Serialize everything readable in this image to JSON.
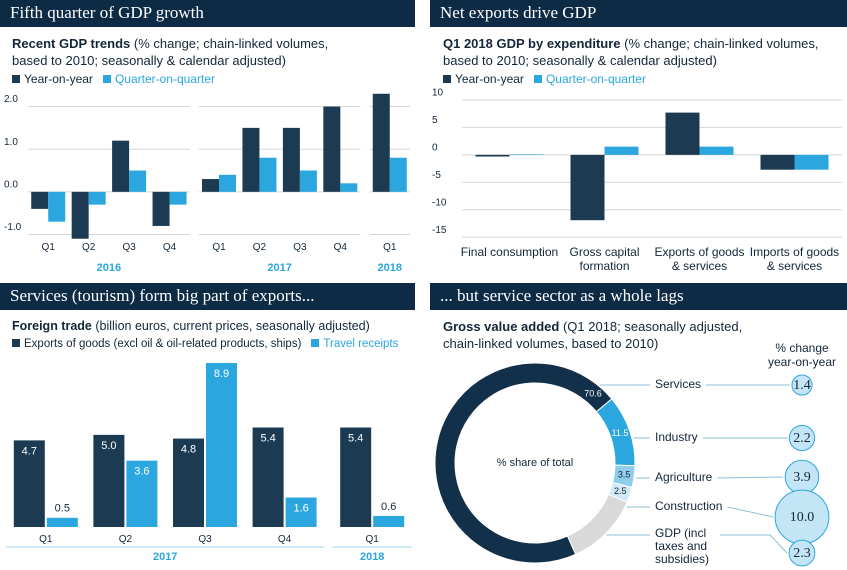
{
  "chart_data": [
    {
      "type": "grouped_bar",
      "title": "Fifth quarter of GDP growth",
      "subtitle": "Recent GDP trends",
      "note": "(% change; chain-linked volumes, based to 2010; seasonally & calendar adjusted)",
      "groups": [
        {
          "name": "2016",
          "categories": [
            "Q1",
            "Q2",
            "Q3",
            "Q4"
          ]
        },
        {
          "name": "2017",
          "categories": [
            "Q1",
            "Q2",
            "Q3",
            "Q4"
          ]
        },
        {
          "name": "2018",
          "categories": [
            "Q1"
          ]
        }
      ],
      "series": [
        {
          "name": "Year-on-year",
          "color": "#1c3b53",
          "values": [
            -0.4,
            -1.1,
            1.2,
            -0.8,
            0.3,
            1.5,
            1.5,
            2.0,
            2.3
          ]
        },
        {
          "name": "Quarter-on-quarter",
          "color": "#2ba6de",
          "values": [
            -0.7,
            -0.3,
            0.5,
            -0.3,
            0.4,
            0.8,
            0.5,
            0.2,
            0.8
          ]
        }
      ],
      "ylim": [
        -1.2,
        2.4
      ],
      "yticks": [
        {
          "value": -1,
          "label": "-1.0"
        },
        {
          "value": 0,
          "label": "0.0"
        },
        {
          "value": 1,
          "label": "1.0"
        },
        {
          "value": 2,
          "label": "2.0"
        }
      ],
      "grid": true
    },
    {
      "type": "grouped_bar",
      "title": "Net exports drive GDP",
      "subtitle": "Q1 2018 GDP by expenditure",
      "note": "(% change; chain-linked volumes, based to 2010; seasonally & calendar adjusted)",
      "categories": [
        "Final consumption",
        "Gross capital formation",
        "Exports of goods & services",
        "Imports of goods & services"
      ],
      "series": [
        {
          "name": "Year-on-year",
          "color": "#1c3b53",
          "values": [
            -0.3,
            -11.9,
            7.7,
            -2.7
          ]
        },
        {
          "name": "Quarter-on-quarter",
          "color": "#2ba6de",
          "values": [
            0.1,
            1.5,
            1.5,
            -2.7
          ]
        }
      ],
      "ylim": [
        -16,
        12
      ],
      "yticks": [
        10,
        5,
        0,
        -5,
        -10,
        -15
      ],
      "grid": true
    },
    {
      "type": "grouped_bar",
      "title": "Services (tourism) form big part of exports...",
      "subtitle": "Foreign trade",
      "note": "(billion euros, current prices, seasonally adjusted)",
      "groups": [
        {
          "name": "2017",
          "categories": [
            "Q1",
            "Q2",
            "Q3",
            "Q4"
          ]
        },
        {
          "name": "2018",
          "categories": [
            "Q1"
          ]
        }
      ],
      "series": [
        {
          "name": "Exports of goods (excl oil & oil-related products, ships)",
          "color": "#1c3b53",
          "values": [
            4.7,
            5.0,
            4.8,
            5.4,
            5.4
          ],
          "value_labels": [
            "4.7",
            "5.0",
            "4.8",
            "5.4",
            "5.4"
          ]
        },
        {
          "name": "Travel receipts",
          "color": "#2ba6de",
          "values": [
            0.5,
            3.6,
            8.9,
            1.6,
            0.6
          ],
          "value_labels": [
            "0.5",
            "3.6",
            "8.9",
            "1.6",
            "0.6"
          ]
        }
      ]
    },
    {
      "type": "donut",
      "title": "... but service sector as a whole lags",
      "subtitle": "Gross value added",
      "note": "(Q1 2018; seasonally adjusted, chain-linked volumes, based to 2010)",
      "center_label": "% share of total",
      "categories": [
        "Services",
        "Industry",
        "Agriculture",
        "Construction",
        "GDP (incl taxes and subsidies)"
      ],
      "values": [
        70.6,
        11.5,
        3.5,
        2.5,
        11.9
      ],
      "value_labels": [
        "70.6",
        "11.5",
        "3.5",
        "2.5",
        null
      ],
      "colors": [
        "#13304a",
        "#2ba6de",
        "#8fcdec",
        "#cfe9f7",
        "#d9d9d9"
      ],
      "bubbles": {
        "title": "% change year-on-year",
        "values": [
          1.4,
          2.2,
          3.9,
          10,
          2.3
        ],
        "value_labels": [
          "1.4",
          "2.2",
          "3.9",
          "10.0",
          "2.3"
        ]
      }
    }
  ]
}
